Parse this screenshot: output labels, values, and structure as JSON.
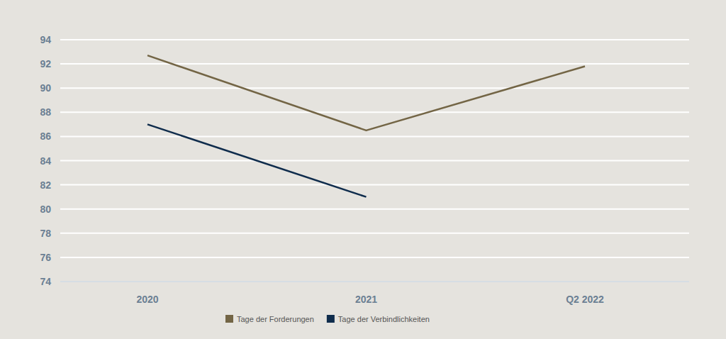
{
  "chart_data": {
    "type": "line",
    "categories": [
      "2020",
      "2021",
      "Q2 2022"
    ],
    "series": [
      {
        "name": "Tage der Forderungen",
        "color": "#736545",
        "values": [
          92.7,
          86.5,
          91.8
        ]
      },
      {
        "name": "Tage der Verbindlichkeiten",
        "color": "#0f2c4c",
        "values": [
          87,
          81,
          null
        ]
      }
    ],
    "ylim": [
      74,
      94
    ],
    "yticks": [
      74,
      76,
      78,
      80,
      82,
      84,
      86,
      88,
      90,
      92,
      94
    ],
    "grid": true,
    "legend": "bottom"
  }
}
